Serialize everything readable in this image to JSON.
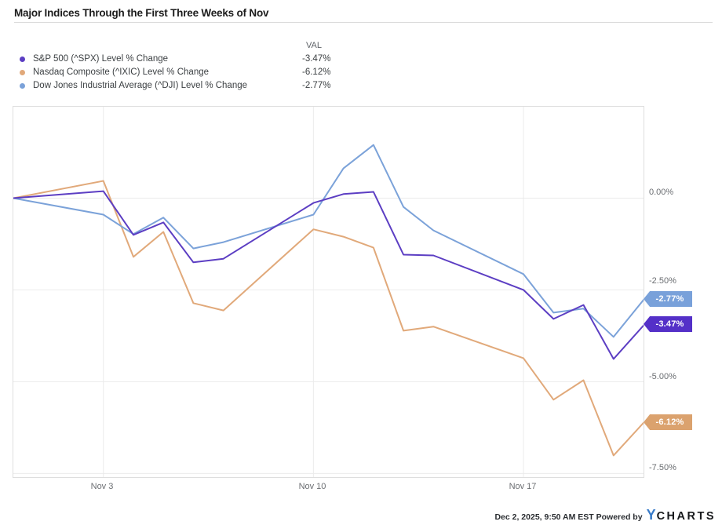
{
  "title": "Major Indices Through the First Three Weeks of Nov",
  "legend": {
    "val_header": "VAL",
    "items": [
      {
        "label": "S&P 500 (^SPX) Level % Change",
        "value": "-3.47%"
      },
      {
        "label": "Nasdaq Composite (^IXIC) Level % Change",
        "value": "-6.12%"
      },
      {
        "label": "Dow Jones Industrial Average (^DJI) Level % Change",
        "value": "-2.77%"
      }
    ]
  },
  "chart_data": {
    "type": "line",
    "title": "Major Indices Through the First Three Weeks of Nov",
    "x_dates": [
      "Oct 31",
      "Nov 3",
      "Nov 4",
      "Nov 5",
      "Nov 6",
      "Nov 7",
      "Nov 10",
      "Nov 11",
      "Nov 12",
      "Nov 13",
      "Nov 14",
      "Nov 17",
      "Nov 18",
      "Nov 19",
      "Nov 20",
      "Nov 21"
    ],
    "x_day_offsets": [
      0,
      3,
      4,
      5,
      6,
      7,
      10,
      11,
      12,
      13,
      14,
      17,
      18,
      19,
      20,
      21
    ],
    "series": [
      {
        "name": "S&P 500 (^SPX) Level % Change",
        "color": "#5c3ec3",
        "badge_color": "#5430c8",
        "end_label": "-3.47%",
        "values": [
          0.0,
          0.19,
          -1.0,
          -0.66,
          -1.75,
          -1.65,
          -0.13,
          0.11,
          0.17,
          -1.54,
          -1.56,
          -2.5,
          -3.29,
          -2.91,
          -4.38,
          -3.47
        ]
      },
      {
        "name": "Nasdaq Composite (^IXIC) Level % Change",
        "color": "#e1a97a",
        "badge_color": "#dba26e",
        "end_label": "-6.12%",
        "values": [
          0.0,
          0.47,
          -1.6,
          -0.92,
          -2.86,
          -3.06,
          -0.85,
          -1.05,
          -1.35,
          -3.61,
          -3.5,
          -4.36,
          -5.49,
          -4.96,
          -7.01,
          -6.12
        ]
      },
      {
        "name": "Dow Jones Industrial Average (^DJI) Level % Change",
        "color": "#7ba2d9",
        "badge_color": "#79a1da",
        "end_label": "-2.77%",
        "values": [
          0.0,
          -0.45,
          -0.98,
          -0.53,
          -1.37,
          -1.2,
          -0.45,
          0.81,
          1.45,
          -0.24,
          -0.88,
          -2.07,
          -3.12,
          -3.01,
          -3.78,
          -2.77
        ]
      }
    ],
    "y_ticks": [
      {
        "label": "0.00%",
        "value": 0.0
      },
      {
        "label": "-2.50%",
        "value": -2.5
      },
      {
        "label": "-5.00%",
        "value": -5.0
      },
      {
        "label": "-7.50%",
        "value": -7.5
      }
    ],
    "x_ticks": [
      {
        "label": "Nov 3",
        "day_offset": 3
      },
      {
        "label": "Nov 10",
        "day_offset": 10
      },
      {
        "label": "Nov 17",
        "day_offset": 17
      }
    ],
    "ylim": [
      -7.6,
      2.49
    ],
    "xlim_days": [
      0,
      21
    ],
    "grid": true,
    "legend_position": "top-left",
    "ylabel": "Level % Change",
    "xlabel": ""
  },
  "footer": {
    "timestamp_powered": "Dec 2, 2025, 9:50 AM EST Powered by",
    "logo_y": "Y",
    "logo_charts": "CHARTS"
  }
}
